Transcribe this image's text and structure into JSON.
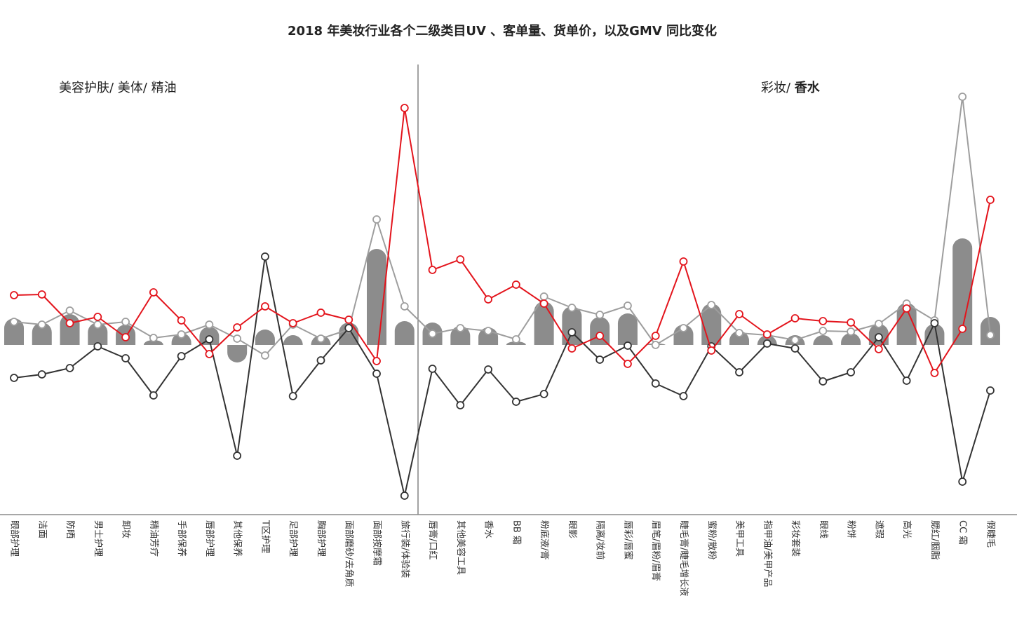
{
  "title": "2018 年美妆行业各个二级类目UV 、客单量、货单价，以及GMV 同比变化",
  "sections": [
    {
      "label": "美容护肤/ 美体/ 精油",
      "start": 0,
      "end": 14
    },
    {
      "prefix": "彩妆/ ",
      "emphasis": "香水",
      "start": 15,
      "end": 35
    }
  ],
  "chart_data": {
    "type": "bar",
    "title": "2018 年美妆行业各个二级类目UV 、客单量、货单价，以及GMV 同比变化",
    "ylim": [
      -2.4,
      4.0
    ],
    "grid": false,
    "categories": [
      "眼部护理",
      "洁面",
      "防晒",
      "男士护理",
      "卸妆",
      "精油芳疗",
      "手部保养",
      "唇部护理",
      "其他保养",
      "T区护理",
      "足部护理",
      "胸部护理",
      "面部磨砂/去角质",
      "面部按摩霜",
      "旅行装/体验装",
      "唇膏/口红",
      "其他美容工具",
      "香水",
      "BB 霜",
      "粉底液/膏",
      "眼影",
      "隔离/妆前",
      "唇彩/唇蜜",
      "眉笔/眉粉/眉膏",
      "睫毛膏/睫毛增长液",
      "蜜粉/散粉",
      "美甲工具",
      "指甲油/美甲产品",
      "彩妆套装",
      "眼线",
      "粉饼",
      "遮瑕",
      "高光",
      "腮红/胭脂",
      "CC 霜",
      "假睫毛"
    ],
    "series": [
      {
        "type": "bar",
        "color": "#8c8c8c",
        "values": [
          0.38,
          0.32,
          0.44,
          0.32,
          0.29,
          0.07,
          0.17,
          0.26,
          -0.25,
          0.22,
          0.14,
          0.14,
          0.32,
          1.37,
          0.34,
          0.32,
          0.27,
          0.25,
          0.05,
          0.62,
          0.55,
          0.4,
          0.45,
          0.02,
          0.29,
          0.59,
          0.2,
          0.14,
          0.14,
          0.14,
          0.17,
          0.3,
          0.6,
          0.3,
          1.52,
          0.4
        ]
      },
      {
        "type": "line",
        "color": "#9e9e9e",
        "values": [
          0.33,
          0.29,
          0.49,
          0.29,
          0.33,
          0.1,
          0.15,
          0.29,
          0.09,
          -0.15,
          0.29,
          0.09,
          0.22,
          1.79,
          0.55,
          0.16,
          0.24,
          0.2,
          0.08,
          0.69,
          0.53,
          0.43,
          0.56,
          0.0,
          0.24,
          0.57,
          0.17,
          0.14,
          0.07,
          0.2,
          0.19,
          0.3,
          0.59,
          0.35,
          3.54,
          0.14
        ]
      },
      {
        "type": "line",
        "color": "#333333",
        "values": [
          -0.47,
          -0.42,
          -0.33,
          -0.02,
          -0.19,
          -0.72,
          -0.16,
          0.08,
          -1.58,
          1.26,
          -0.73,
          -0.22,
          0.24,
          -0.41,
          -2.15,
          -0.34,
          -0.86,
          -0.35,
          -0.81,
          -0.7,
          0.18,
          -0.21,
          -0.01,
          -0.55,
          -0.73,
          -0.02,
          -0.39,
          0.02,
          -0.05,
          -0.52,
          -0.39,
          0.11,
          -0.51,
          0.31,
          -1.95,
          -0.65
        ]
      },
      {
        "type": "line",
        "color": "#e3141c",
        "values": [
          0.71,
          0.72,
          0.31,
          0.4,
          0.11,
          0.75,
          0.35,
          -0.13,
          0.25,
          0.55,
          0.31,
          0.46,
          0.36,
          -0.23,
          3.38,
          1.07,
          1.22,
          0.65,
          0.86,
          0.59,
          -0.05,
          0.13,
          -0.27,
          0.13,
          1.19,
          -0.08,
          0.44,
          0.15,
          0.38,
          0.34,
          0.32,
          -0.06,
          0.52,
          -0.4,
          0.23,
          2.07
        ]
      }
    ]
  }
}
